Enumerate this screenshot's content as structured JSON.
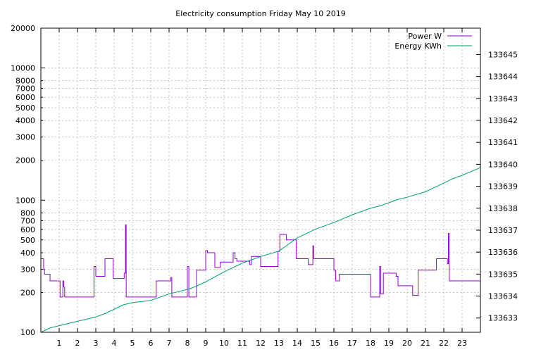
{
  "chart_data": {
    "type": "line",
    "title": "Electricity consumption Friday May 10 2019",
    "xlabel": "",
    "ylabel": "",
    "y2label": "",
    "xlim": [
      0,
      24
    ],
    "ylim": [
      100,
      20000
    ],
    "y_scale": "log",
    "y2lim": [
      133632.35,
      133646.2
    ],
    "x_ticks": [
      1,
      2,
      3,
      4,
      5,
      6,
      7,
      8,
      9,
      10,
      11,
      12,
      13,
      14,
      15,
      16,
      17,
      18,
      19,
      20,
      21,
      22,
      23
    ],
    "x_tick_labels": [
      "1",
      "2",
      "3",
      "4",
      "5",
      "6",
      "7",
      "8",
      "9",
      "10",
      "11",
      "12",
      "13",
      "14",
      "15",
      "16",
      "17",
      "18",
      "19",
      "20",
      "21",
      "22",
      "23"
    ],
    "y_major_ticks": [
      100,
      1000,
      10000
    ],
    "y_ticks": [
      100,
      200,
      300,
      400,
      500,
      600,
      700,
      800,
      1000,
      2000,
      3000,
      4000,
      5000,
      6000,
      7000,
      8000,
      10000,
      20000
    ],
    "y_tick_labels": [
      "100",
      "200",
      "300",
      "400",
      "500",
      "600",
      "700",
      "800",
      "1000",
      "2000",
      "3000",
      "4000",
      "5000",
      "6000",
      "7000",
      "8000",
      "10000",
      "20000"
    ],
    "y2_ticks": [
      133633,
      133634,
      133635,
      133636,
      133637,
      133638,
      133639,
      133640,
      133641,
      133642,
      133643,
      133644,
      133645
    ],
    "y2_tick_labels": [
      "133633",
      "133634",
      "133635",
      "133636",
      "133637",
      "133638",
      "133639",
      "133640",
      "133641",
      "133642",
      "133643",
      "133644",
      "133645"
    ],
    "grid": true,
    "legend_position": "top-right",
    "series": [
      {
        "name": "Power W",
        "axis": "left",
        "color": "#9400d3",
        "points": [
          [
            0,
            360
          ],
          [
            0.15,
            360
          ],
          [
            0.15,
            300
          ],
          [
            0.2,
            300
          ],
          [
            0.2,
            275
          ],
          [
            0.5,
            275
          ],
          [
            0.5,
            245
          ],
          [
            1.05,
            245
          ],
          [
            1.05,
            185
          ],
          [
            1.2,
            185
          ],
          [
            1.2,
            245
          ],
          [
            1.25,
            245
          ],
          [
            1.25,
            220
          ],
          [
            1.3,
            220
          ],
          [
            1.3,
            185
          ],
          [
            2.9,
            185
          ],
          [
            2.9,
            315
          ],
          [
            3.0,
            315
          ],
          [
            3.0,
            265
          ],
          [
            3.5,
            265
          ],
          [
            3.5,
            360
          ],
          [
            3.95,
            360
          ],
          [
            3.95,
            255
          ],
          [
            4.55,
            255
          ],
          [
            4.55,
            280
          ],
          [
            4.62,
            280
          ],
          [
            4.62,
            650
          ],
          [
            4.66,
            650
          ],
          [
            4.66,
            185
          ],
          [
            6.3,
            185
          ],
          [
            6.3,
            245
          ],
          [
            7.1,
            245
          ],
          [
            7.1,
            260
          ],
          [
            7.15,
            260
          ],
          [
            7.15,
            185
          ],
          [
            8.0,
            185
          ],
          [
            8.0,
            315
          ],
          [
            8.08,
            315
          ],
          [
            8.08,
            185
          ],
          [
            8.5,
            185
          ],
          [
            8.5,
            295
          ],
          [
            9.0,
            295
          ],
          [
            9.0,
            415
          ],
          [
            9.1,
            415
          ],
          [
            9.1,
            400
          ],
          [
            9.5,
            400
          ],
          [
            9.5,
            310
          ],
          [
            9.8,
            310
          ],
          [
            9.8,
            340
          ],
          [
            10.5,
            340
          ],
          [
            10.5,
            400
          ],
          [
            10.6,
            400
          ],
          [
            10.6,
            360
          ],
          [
            10.7,
            360
          ],
          [
            10.7,
            345
          ],
          [
            11.4,
            345
          ],
          [
            11.4,
            325
          ],
          [
            11.5,
            325
          ],
          [
            11.5,
            375
          ],
          [
            12.0,
            375
          ],
          [
            12.0,
            315
          ],
          [
            12.95,
            315
          ],
          [
            12.95,
            410
          ],
          [
            13.05,
            410
          ],
          [
            13.05,
            550
          ],
          [
            13.4,
            550
          ],
          [
            13.4,
            500
          ],
          [
            13.95,
            500
          ],
          [
            13.95,
            360
          ],
          [
            14.6,
            360
          ],
          [
            14.6,
            325
          ],
          [
            14.85,
            325
          ],
          [
            14.85,
            450
          ],
          [
            14.9,
            450
          ],
          [
            14.9,
            360
          ],
          [
            16.0,
            360
          ],
          [
            16.0,
            295
          ],
          [
            16.1,
            295
          ],
          [
            16.1,
            245
          ],
          [
            16.3,
            245
          ],
          [
            16.3,
            275
          ],
          [
            18.0,
            275
          ],
          [
            18.0,
            185
          ],
          [
            18.5,
            185
          ],
          [
            18.5,
            315
          ],
          [
            18.55,
            315
          ],
          [
            18.55,
            195
          ],
          [
            18.7,
            195
          ],
          [
            18.7,
            280
          ],
          [
            19.4,
            280
          ],
          [
            19.4,
            265
          ],
          [
            19.5,
            265
          ],
          [
            19.5,
            225
          ],
          [
            20.3,
            225
          ],
          [
            20.3,
            190
          ],
          [
            20.6,
            190
          ],
          [
            20.6,
            295
          ],
          [
            21.6,
            295
          ],
          [
            21.6,
            360
          ],
          [
            22.2,
            360
          ],
          [
            22.2,
            330
          ],
          [
            22.25,
            330
          ],
          [
            22.25,
            560
          ],
          [
            22.3,
            560
          ],
          [
            22.3,
            245
          ],
          [
            24,
            245
          ]
        ]
      },
      {
        "name": "Energy KWh",
        "axis": "right",
        "color": "#009e73",
        "points": [
          [
            0,
            133632.35
          ],
          [
            0.5,
            133632.55
          ],
          [
            1,
            133632.65
          ],
          [
            2,
            133632.85
          ],
          [
            3,
            133633.05
          ],
          [
            3.5,
            133633.2
          ],
          [
            4,
            133633.4
          ],
          [
            4.5,
            133633.6
          ],
          [
            5,
            133633.7
          ],
          [
            6,
            133633.8
          ],
          [
            7,
            133634.1
          ],
          [
            7.5,
            133634.2
          ],
          [
            8,
            133634.3
          ],
          [
            8.5,
            133634.45
          ],
          [
            9,
            133634.65
          ],
          [
            10,
            133635.1
          ],
          [
            10.5,
            133635.3
          ],
          [
            11,
            133635.5
          ],
          [
            12,
            133635.8
          ],
          [
            13,
            133636.05
          ],
          [
            13.5,
            133636.35
          ],
          [
            14,
            133636.65
          ],
          [
            14.5,
            133636.85
          ],
          [
            15,
            133637.05
          ],
          [
            16,
            133637.35
          ],
          [
            17,
            133637.7
          ],
          [
            18,
            133638.0
          ],
          [
            18.5,
            133638.1
          ],
          [
            19,
            133638.25
          ],
          [
            19.5,
            133638.4
          ],
          [
            20,
            133638.5
          ],
          [
            21,
            133638.75
          ],
          [
            21.5,
            133638.95
          ],
          [
            22,
            133639.15
          ],
          [
            22.5,
            133639.35
          ],
          [
            23,
            133639.5
          ],
          [
            24,
            133639.85
          ]
        ]
      }
    ]
  }
}
